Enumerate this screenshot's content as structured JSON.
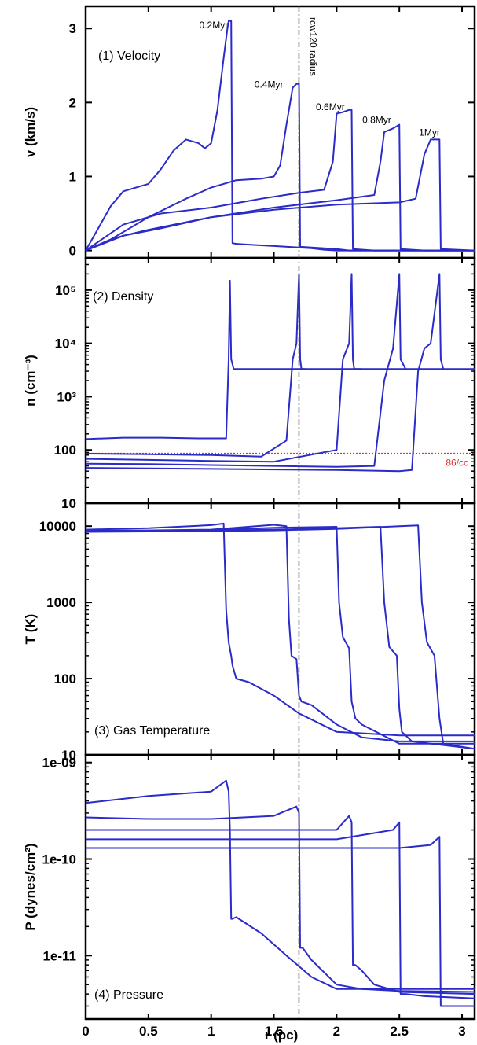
{
  "chart_data": {
    "type": "line",
    "shared_xaxis": {
      "label": "r (pc)",
      "range": [
        0,
        3.1
      ],
      "ticks": [
        0,
        0.5,
        1,
        1.5,
        2,
        2.5,
        3
      ],
      "tick_labels": [
        "0",
        "0.5",
        "1",
        "1.5",
        "2",
        "2.5",
        "3"
      ]
    },
    "vertical_reference": {
      "x": 1.7,
      "label": "rcw120 radius"
    },
    "snapshot_labels": [
      {
        "text": "0.2Myr",
        "x": 1.02,
        "y": 3.0
      },
      {
        "text": "0.4Myr",
        "x": 1.46,
        "y": 2.2
      },
      {
        "text": "0.6Myr",
        "x": 1.95,
        "y": 1.9
      },
      {
        "text": "0.8Myr",
        "x": 2.32,
        "y": 1.72
      },
      {
        "text": "1Myr",
        "x": 2.74,
        "y": 1.55
      }
    ],
    "panels": [
      {
        "label": "(1) Velocity",
        "ylabel": "v (km/s)",
        "yscale": "linear",
        "ylim": [
          -0.1,
          3.3
        ],
        "yticks": [
          0,
          1,
          2,
          3
        ],
        "ytick_labels": [
          "0",
          "1",
          "2",
          "3"
        ],
        "series": [
          {
            "x": [
              0,
              0.1,
              0.2,
              0.3,
              0.4,
              0.5,
              0.6,
              0.7,
              0.8,
              0.9,
              0.95,
              1.0,
              1.05,
              1.1,
              1.13,
              1.14,
              1.16,
              1.17,
              1.2,
              1.3,
              1.5,
              1.7,
              1.8,
              1.9,
              2.0,
              3.1
            ],
            "y": [
              0,
              0.3,
              0.6,
              0.8,
              0.85,
              0.9,
              1.1,
              1.35,
              1.5,
              1.45,
              1.38,
              1.45,
              1.9,
              2.6,
              3.0,
              3.1,
              3.1,
              0.1,
              0.09,
              0.08,
              0.06,
              0.04,
              0.03,
              0.01,
              0,
              0
            ]
          },
          {
            "x": [
              0,
              0.2,
              0.5,
              0.8,
              1.0,
              1.2,
              1.4,
              1.5,
              1.55,
              1.6,
              1.65,
              1.68,
              1.7,
              1.71,
              1.8,
              1.9,
              2.0,
              2.1,
              3.1
            ],
            "y": [
              0,
              0.15,
              0.45,
              0.7,
              0.85,
              0.95,
              0.97,
              1.0,
              1.15,
              1.7,
              2.2,
              2.25,
              2.25,
              0.05,
              0.04,
              0.03,
              0.02,
              0,
              0
            ]
          },
          {
            "x": [
              0,
              0.3,
              0.6,
              1.0,
              1.4,
              1.7,
              1.9,
              1.97,
              2.0,
              2.05,
              2.1,
              2.12,
              2.13,
              2.3,
              3.1
            ],
            "y": [
              0,
              0.35,
              0.5,
              0.58,
              0.7,
              0.78,
              0.82,
              1.2,
              1.85,
              1.87,
              1.9,
              1.9,
              0.02,
              0,
              0
            ]
          },
          {
            "x": [
              0,
              0.3,
              0.6,
              1.0,
              1.5,
              2.0,
              2.3,
              2.35,
              2.38,
              2.45,
              2.5,
              2.51,
              2.7,
              3.1
            ],
            "y": [
              0,
              0.2,
              0.3,
              0.45,
              0.58,
              0.68,
              0.75,
              1.2,
              1.6,
              1.65,
              1.7,
              0.02,
              0,
              0
            ]
          },
          {
            "x": [
              0,
              0.2,
              0.3,
              0.5,
              1.0,
              1.5,
              2.0,
              2.5,
              2.63,
              2.7,
              2.75,
              2.82,
              2.83,
              3.1
            ],
            "y": [
              0,
              0.15,
              0.2,
              0.28,
              0.45,
              0.55,
              0.62,
              0.65,
              0.7,
              1.3,
              1.5,
              1.5,
              0.02,
              0
            ]
          }
        ]
      },
      {
        "label": "(2) Density",
        "ylabel": "n (cm⁻³)",
        "yscale": "log",
        "ylim": [
          10,
          400000
        ],
        "yticks": [
          10,
          100,
          1000,
          10000,
          100000
        ],
        "ytick_labels": [
          "10",
          "100",
          "10³",
          "10⁴",
          "10⁵"
        ],
        "horizontal_reference": {
          "y": 86,
          "label": "86/cc"
        },
        "series": [
          {
            "x": [
              0,
              0.3,
              0.6,
              0.9,
              1.12,
              1.14,
              1.15,
              1.16,
              1.18,
              3.1
            ],
            "y": [
              160,
              170,
              170,
              165,
              165,
              5000,
              150000,
              5000,
              3300,
              3300
            ]
          },
          {
            "x": [
              0,
              0.5,
              1.0,
              1.4,
              1.6,
              1.65,
              1.68,
              1.7,
              1.71,
              1.72,
              1.75
            ],
            "y": [
              85,
              83,
              80,
              75,
              150,
              5000,
              10000,
              200000,
              5000,
              3300,
              3300
            ]
          },
          {
            "x": [
              0,
              0.5,
              1.0,
              1.5,
              2.0,
              2.05,
              2.1,
              2.12,
              2.13,
              2.14,
              2.2
            ],
            "y": [
              68,
              65,
              62,
              60,
              100,
              5000,
              10000,
              200000,
              5000,
              3300,
              3300
            ]
          },
          {
            "x": [
              0,
              0.5,
              1.0,
              1.5,
              2.0,
              2.3,
              2.38,
              2.45,
              2.5,
              2.51,
              2.55
            ],
            "y": [
              55,
              54,
              52,
              50,
              48,
              50,
              2000,
              8000,
              200000,
              5000,
              3300
            ]
          },
          {
            "x": [
              0,
              0.5,
              1.0,
              1.5,
              2.0,
              2.5,
              2.6,
              2.65,
              2.7,
              2.75,
              2.82,
              2.83,
              2.85
            ],
            "y": [
              46,
              45,
              44,
              43,
              42,
              40,
              42,
              3000,
              8000,
              10000,
              200000,
              5000,
              3300
            ]
          }
        ]
      },
      {
        "label": "(3) Gas Temperature",
        "ylabel": "T (K)",
        "yscale": "log",
        "ylim": [
          10,
          20000
        ],
        "yticks": [
          10,
          100,
          1000,
          10000
        ],
        "ytick_labels": [
          "10",
          "100",
          "1000",
          "10000"
        ],
        "series": [
          {
            "x": [
              0,
              0.5,
              1.0,
              1.1,
              1.12,
              1.14,
              1.16,
              1.17,
              1.2,
              1.3,
              1.5,
              1.7,
              2.0,
              2.5,
              3.1
            ],
            "y": [
              9000,
              9400,
              10300,
              10800,
              800,
              300,
              200,
              150,
              100,
              90,
              60,
              35,
              20,
              18,
              18
            ]
          },
          {
            "x": [
              0,
              0.5,
              1.0,
              1.5,
              1.6,
              1.62,
              1.64,
              1.68,
              1.7,
              1.72,
              1.8,
              2.0,
              2.2,
              2.5,
              3.1
            ],
            "y": [
              8700,
              8800,
              9000,
              10400,
              10000,
              600,
              200,
              180,
              60,
              50,
              45,
              25,
              17,
              15,
              15
            ]
          },
          {
            "x": [
              0,
              0.5,
              1.0,
              1.5,
              2.0,
              2.02,
              2.05,
              2.1,
              2.12,
              2.15,
              2.2,
              2.5,
              3.1
            ],
            "y": [
              8600,
              8700,
              8900,
              9500,
              9800,
              1000,
              350,
              250,
              50,
              30,
              25,
              14,
              14
            ]
          },
          {
            "x": [
              0,
              0.5,
              1.0,
              1.5,
              2.0,
              2.35,
              2.38,
              2.42,
              2.48,
              2.5,
              2.52,
              2.6,
              3.1
            ],
            "y": [
              8500,
              8600,
              8700,
              9000,
              9400,
              9800,
              1000,
              260,
              200,
              40,
              20,
              15,
              12
            ]
          },
          {
            "x": [
              0,
              0.5,
              1.0,
              1.5,
              2.0,
              2.5,
              2.65,
              2.68,
              2.72,
              2.78,
              2.82,
              2.85,
              3.1
            ],
            "y": [
              8400,
              8500,
              8600,
              8800,
              9200,
              10000,
              10200,
              1000,
              300,
              200,
              30,
              14,
              12
            ]
          }
        ]
      },
      {
        "label": "(4) Pressure",
        "ylabel": "P (dynes/cm²)",
        "yscale": "log",
        "ylim": [
          2.2e-12,
          1.2e-09
        ],
        "yticks": [
          1e-11,
          1e-10,
          1e-09
        ],
        "ytick_labels": [
          "1e-11",
          "1e-10",
          "1e-09"
        ],
        "series": [
          {
            "x": [
              0,
              0.5,
              1.0,
              1.12,
              1.14,
              1.15,
              1.16,
              1.17,
              1.2,
              1.4,
              1.6,
              1.8,
              2.0,
              2.5,
              3.1
            ],
            "y": [
              3.8e-10,
              4.5e-10,
              5e-10,
              6.5e-10,
              5e-10,
              2e-10,
              2.4e-11,
              2.4e-11,
              2.5e-11,
              1.7e-11,
              1e-11,
              6e-12,
              4.5e-12,
              4.5e-12,
              4.5e-12
            ]
          },
          {
            "x": [
              0,
              0.5,
              1.0,
              1.5,
              1.68,
              1.7,
              1.71,
              1.73,
              1.8,
              2.0,
              2.2,
              2.5,
              3.1
            ],
            "y": [
              2.7e-10,
              2.6e-10,
              2.6e-10,
              2.8e-10,
              3.5e-10,
              3e-10,
              1.2e-11,
              1.2e-11,
              9e-12,
              5e-12,
              4.5e-12,
              4.3e-12,
              4.2e-12
            ]
          },
          {
            "x": [
              0,
              0.5,
              1.0,
              1.5,
              2.0,
              2.1,
              2.12,
              2.13,
              2.15,
              2.2,
              2.3,
              2.5,
              3.1
            ],
            "y": [
              2e-10,
              2e-10,
              2e-10,
              2e-10,
              2e-10,
              2.8e-10,
              2.4e-10,
              8e-12,
              8e-12,
              7e-12,
              5e-12,
              4.2e-12,
              4e-12
            ]
          },
          {
            "x": [
              0,
              0.5,
              1.0,
              1.5,
              2.0,
              2.45,
              2.5,
              2.51,
              2.55,
              2.7,
              3.1
            ],
            "y": [
              1.6e-10,
              1.6e-10,
              1.6e-10,
              1.6e-10,
              1.6e-10,
              2e-10,
              2.4e-10,
              4e-12,
              4e-12,
              3.8e-12,
              3.6e-12
            ]
          },
          {
            "x": [
              0,
              0.5,
              1.0,
              1.5,
              2.0,
              2.5,
              2.75,
              2.82,
              2.83,
              2.85,
              3.1
            ],
            "y": [
              1.3e-10,
              1.3e-10,
              1.3e-10,
              1.3e-10,
              1.3e-10,
              1.3e-10,
              1.4e-10,
              1.7e-10,
              3e-12,
              3e-12,
              3e-12
            ]
          }
        ]
      }
    ]
  }
}
